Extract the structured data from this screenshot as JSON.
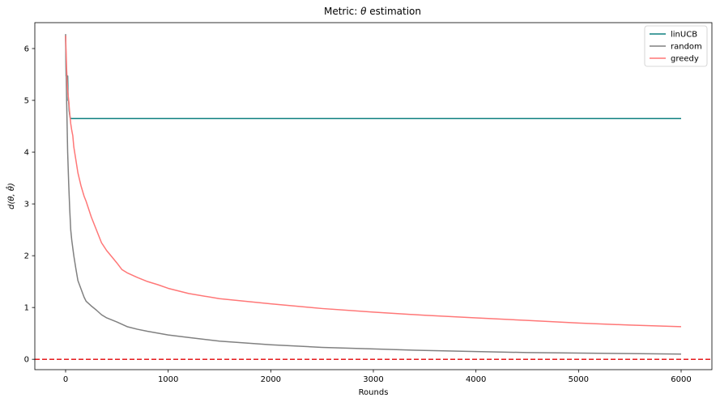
{
  "chart_data": {
    "type": "line",
    "title_prefix": "Metric: ",
    "title_symbol": "θ",
    "title_suffix": " estimation",
    "xlabel": "Rounds",
    "ylabel": "d(θ, θ̂)",
    "xlim": [
      -300,
      6300
    ],
    "ylim": [
      -0.2,
      6.5
    ],
    "xticks": [
      0,
      1000,
      2000,
      3000,
      4000,
      5000,
      6000
    ],
    "xtick_labels": [
      "0",
      "1000",
      "2000",
      "3000",
      "4000",
      "5000",
      "6000"
    ],
    "yticks": [
      0,
      1,
      2,
      3,
      4,
      5,
      6
    ],
    "ytick_labels": [
      "0",
      "1",
      "2",
      "3",
      "4",
      "5",
      "6"
    ],
    "legend_position": "top-right",
    "grid": false,
    "reference_line": {
      "y": 0,
      "color": "#e41a1c",
      "style": "dashed"
    },
    "series": [
      {
        "name": "linUCB",
        "color": "#0e8080",
        "x": [
          0,
          5,
          10,
          15,
          20,
          25,
          30,
          35,
          40,
          45,
          50,
          60,
          100,
          1000,
          3000,
          6000
        ],
        "y": [
          6.25,
          5.47,
          5.47,
          5.47,
          5.47,
          5.0,
          4.98,
          4.8,
          4.72,
          4.66,
          4.65,
          4.65,
          4.65,
          4.65,
          4.65,
          4.65
        ]
      },
      {
        "name": "random",
        "color": "#808080",
        "x": [
          0,
          10,
          20,
          30,
          40,
          50,
          60,
          80,
          100,
          120,
          150,
          180,
          200,
          250,
          300,
          350,
          400,
          500,
          600,
          700,
          800,
          1000,
          1200,
          1500,
          2000,
          2500,
          3000,
          3500,
          4000,
          4500,
          5000,
          5500,
          6000
        ],
        "y": [
          6.28,
          5.0,
          4.0,
          3.4,
          2.9,
          2.5,
          2.3,
          2.0,
          1.75,
          1.52,
          1.36,
          1.2,
          1.12,
          1.03,
          0.95,
          0.86,
          0.8,
          0.72,
          0.63,
          0.58,
          0.54,
          0.47,
          0.42,
          0.35,
          0.28,
          0.23,
          0.2,
          0.17,
          0.15,
          0.13,
          0.12,
          0.11,
          0.1
        ]
      },
      {
        "name": "greedy",
        "color": "#ff7777",
        "x": [
          0,
          10,
          20,
          30,
          40,
          50,
          60,
          70,
          80,
          100,
          120,
          150,
          180,
          200,
          250,
          300,
          350,
          400,
          450,
          500,
          550,
          600,
          700,
          800,
          900,
          1000,
          1200,
          1500,
          2000,
          2500,
          3000,
          3500,
          4000,
          4500,
          5000,
          5500,
          6000
        ],
        "y": [
          6.25,
          5.6,
          5.2,
          5.0,
          4.75,
          4.55,
          4.42,
          4.32,
          4.1,
          3.85,
          3.6,
          3.35,
          3.15,
          3.05,
          2.75,
          2.5,
          2.25,
          2.1,
          1.98,
          1.86,
          1.73,
          1.67,
          1.58,
          1.5,
          1.44,
          1.37,
          1.27,
          1.17,
          1.07,
          0.98,
          0.91,
          0.85,
          0.8,
          0.75,
          0.7,
          0.66,
          0.63
        ]
      }
    ]
  }
}
